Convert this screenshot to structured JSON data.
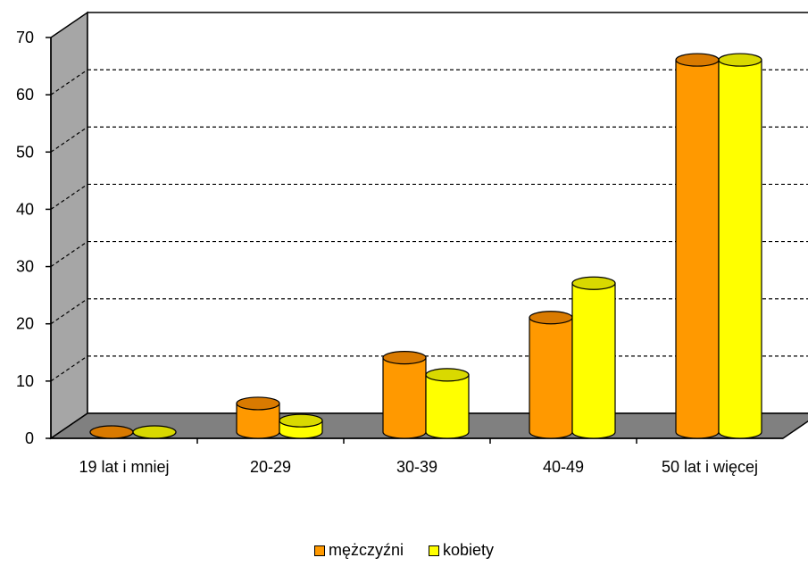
{
  "chart_data": {
    "type": "bar",
    "categories": [
      "19 lat i mniej",
      "20-29",
      "30-39",
      "40-49",
      "50 lat i więcej"
    ],
    "series": [
      {
        "name": "mężczyźni",
        "values": [
          0,
          5,
          13,
          20,
          65
        ],
        "color": "#ff9900",
        "top_color": "#d97a00"
      },
      {
        "name": "kobiety",
        "values": [
          0,
          2,
          10,
          26,
          65
        ],
        "color": "#ffff00",
        "top_color": "#d9d900"
      }
    ],
    "ylim": [
      0,
      70
    ],
    "yticks": [
      0,
      10,
      20,
      30,
      40,
      50,
      60,
      70
    ],
    "grid": true,
    "legend_position": "bottom",
    "wall_color": "#a6a6a6",
    "floor_color": "#808080"
  }
}
